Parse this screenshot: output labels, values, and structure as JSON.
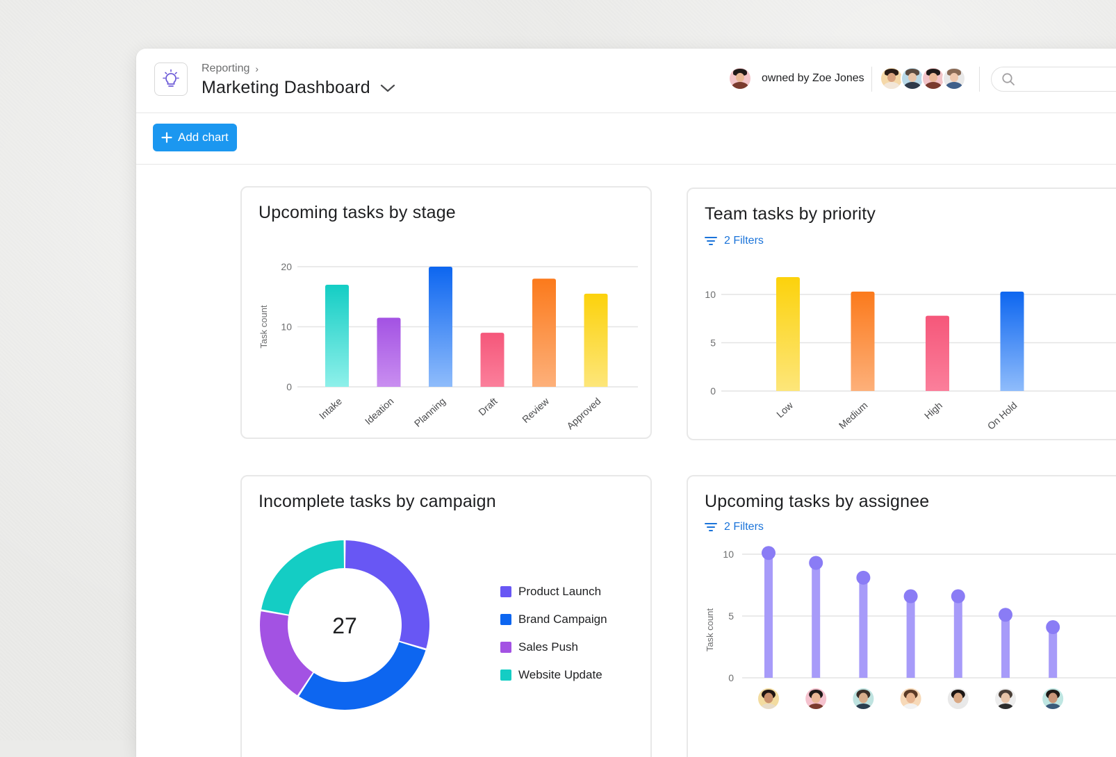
{
  "header": {
    "breadcrumb": "Reporting",
    "title": "Marketing Dashboard",
    "owner_text": "owned by Zoe Jones",
    "search_placeholder": ""
  },
  "toolbar": {
    "add_chart_label": "Add chart"
  },
  "colors": {
    "accent": "#1b97f0",
    "link": "#1a73d9",
    "teal": "#14cdc4",
    "purple": "#a352e3",
    "blue": "#0d66f0",
    "pink": "#f5577a",
    "orange": "#fb7a1c",
    "yellow": "#fcd20c",
    "indigo": "#6857f4",
    "lavender": "#a79bf9"
  },
  "cards": {
    "stage": {
      "title": "Upcoming tasks by stage"
    },
    "priority": {
      "title": "Team tasks by priority",
      "filter_label": "2 Filters"
    },
    "campaign": {
      "title": "Incomplete tasks by campaign",
      "total": "27"
    },
    "assignee": {
      "title": "Upcoming tasks by assignee",
      "filter_label": "2 Filters"
    }
  },
  "chart_data": [
    {
      "id": "stage",
      "type": "bar",
      "title": "Upcoming tasks by stage",
      "ylabel": "Task count",
      "xlabel": "",
      "ylim": [
        0,
        20
      ],
      "yticks": [
        0,
        10,
        20
      ],
      "grid": true,
      "categories": [
        "Intake",
        "Ideation",
        "Planning",
        "Draft",
        "Review",
        "Approved"
      ],
      "values": [
        17,
        11.5,
        20,
        9,
        18,
        15.5
      ],
      "colors": [
        [
          "#14cdc4",
          "#8ef0ea"
        ],
        [
          "#a352e3",
          "#c98ef0"
        ],
        [
          "#0d66f0",
          "#8fbcfb"
        ],
        [
          "#f5577a",
          "#fb7f9b"
        ],
        [
          "#fb7a1c",
          "#fdb07a"
        ],
        [
          "#fcd20c",
          "#fde67a"
        ]
      ]
    },
    {
      "id": "priority",
      "type": "bar",
      "title": "Team tasks by priority",
      "ylabel": "",
      "xlabel": "",
      "ylim": [
        0,
        10
      ],
      "yticks": [
        0,
        5,
        10
      ],
      "grid": true,
      "categories": [
        "Low",
        "Medium",
        "High",
        "On Hold"
      ],
      "values": [
        11.8,
        10.3,
        7.8,
        10.3
      ],
      "colors": [
        [
          "#fcd20c",
          "#fde67a"
        ],
        [
          "#fb7a1c",
          "#fdb07a"
        ],
        [
          "#f5577a",
          "#fb7f9b"
        ],
        [
          "#0d66f0",
          "#8fbcfb"
        ]
      ]
    },
    {
      "id": "campaign",
      "type": "pie",
      "title": "Incomplete tasks by campaign",
      "center_value": 27,
      "legend_placement": "right",
      "categories": [
        "Product Launch",
        "Brand Campaign",
        "Sales Push",
        "Website Update"
      ],
      "values": [
        8,
        8,
        5,
        6
      ],
      "colors": [
        "#6857f4",
        "#0d66f0",
        "#a352e3",
        "#14cdc4"
      ],
      "segment_order": [
        "Product Launch",
        "Brand Campaign",
        "Sales Push",
        "Website Update"
      ]
    },
    {
      "id": "assignee",
      "type": "bar",
      "title": "Upcoming tasks by assignee",
      "ylabel": "Task count",
      "xlabel": "",
      "ylim": [
        0,
        10
      ],
      "yticks": [
        0,
        5,
        10
      ],
      "grid": true,
      "categories": [
        "assignee-1",
        "assignee-2",
        "assignee-3",
        "assignee-4",
        "assignee-5",
        "assignee-6",
        "assignee-7"
      ],
      "values": [
        10.1,
        9.3,
        8.1,
        6.6,
        6.6,
        5.1,
        4.1
      ],
      "color": "#a79bf9",
      "dot_color": "#8a7cf5"
    }
  ],
  "avatars": {
    "owner": {
      "skin": "#e9b896",
      "hair": "#1f1a18",
      "shirt": "#7a3b2e",
      "bg": "#f2c4c8"
    },
    "members": [
      {
        "skin": "#d9a27f",
        "hair": "#2a1c16",
        "shirt": "#f2e6d8",
        "bg": "#f5d8a8"
      },
      {
        "skin": "#e8c4a8",
        "hair": "#5a4a40",
        "shirt": "#2f3a4a",
        "bg": "#b9d9e8"
      },
      {
        "skin": "#e9b896",
        "hair": "#1f1a18",
        "shirt": "#7a3b2e",
        "bg": "#f2c4c8"
      },
      {
        "skin": "#efc7ad",
        "hair": "#8a6a55",
        "shirt": "#3f5f8a",
        "bg": "#e8e8e8"
      }
    ],
    "assignees": [
      {
        "skin": "#c98f6b",
        "hair": "#1f1512",
        "shirt": "#e8dcc8",
        "bg": "#f3dca0"
      },
      {
        "skin": "#e9b896",
        "hair": "#1f1a18",
        "shirt": "#7a3b2e",
        "bg": "#f5c2ce"
      },
      {
        "skin": "#d8ad8c",
        "hair": "#3a2e28",
        "shirt": "#2a3d4f",
        "bg": "#bfe3e0"
      },
      {
        "skin": "#e7b48f",
        "hair": "#5a3a26",
        "shirt": "#f2f2f2",
        "bg": "#f7d9b8"
      },
      {
        "skin": "#d9a884",
        "hair": "#1c1614",
        "shirt": "#e8e8e8",
        "bg": "#e9e9e9"
      },
      {
        "skin": "#e8c4a8",
        "hair": "#4a3e36",
        "shirt": "#2c2c2c",
        "bg": "#ededed"
      },
      {
        "skin": "#c99679",
        "hair": "#1e1916",
        "shirt": "#3a5a7a",
        "bg": "#bfe6e2"
      }
    ]
  }
}
